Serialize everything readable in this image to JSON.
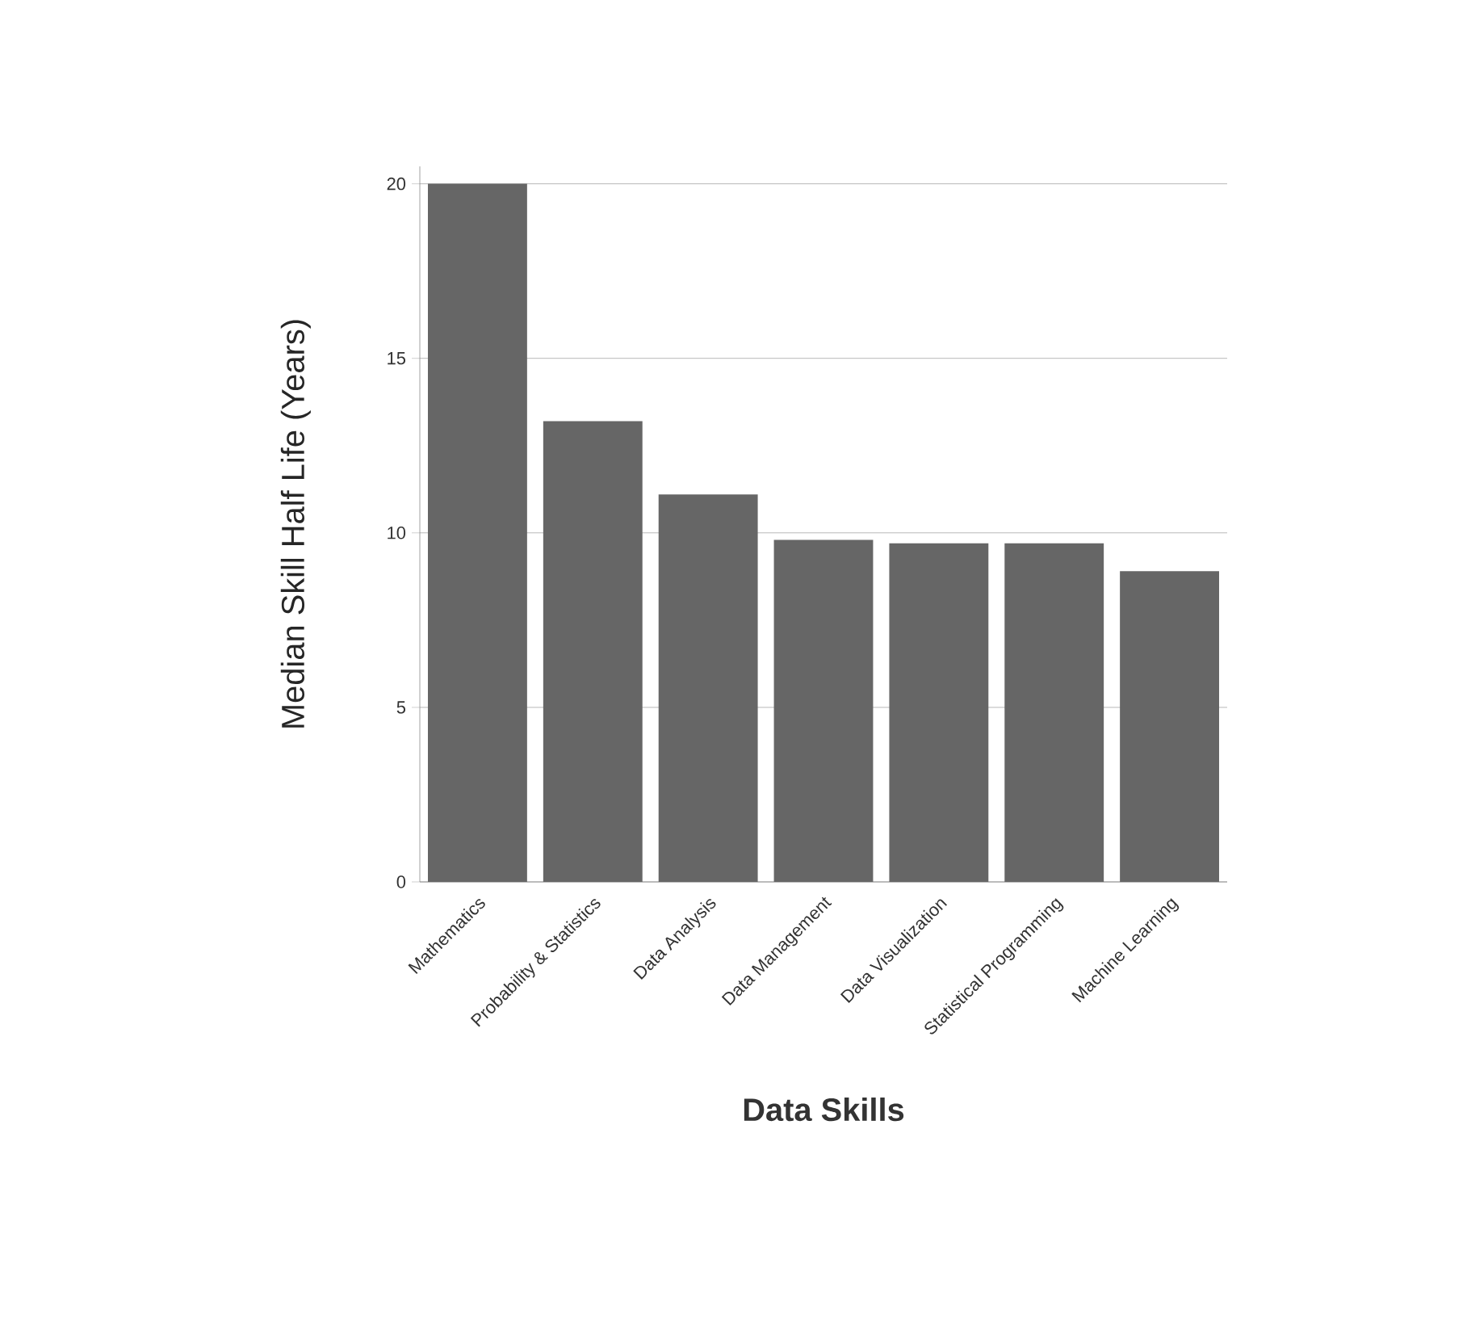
{
  "chart_data": {
    "type": "bar",
    "xlabel": "Data Skills",
    "ylabel": "Median Skill Half Life (Years)",
    "categories": [
      "Mathematics",
      "Probability & Statistics",
      "Data Analysis",
      "Data Management",
      "Data Visualization",
      "Statistical Programming",
      "Machine Learning"
    ],
    "values": [
      20,
      13.2,
      11.1,
      9.8,
      9.7,
      9.7,
      8.9
    ],
    "color": "#666666",
    "ylim": [
      0,
      20.5
    ],
    "yticks": [
      0,
      5,
      10,
      15,
      20
    ],
    "grid": "y"
  }
}
